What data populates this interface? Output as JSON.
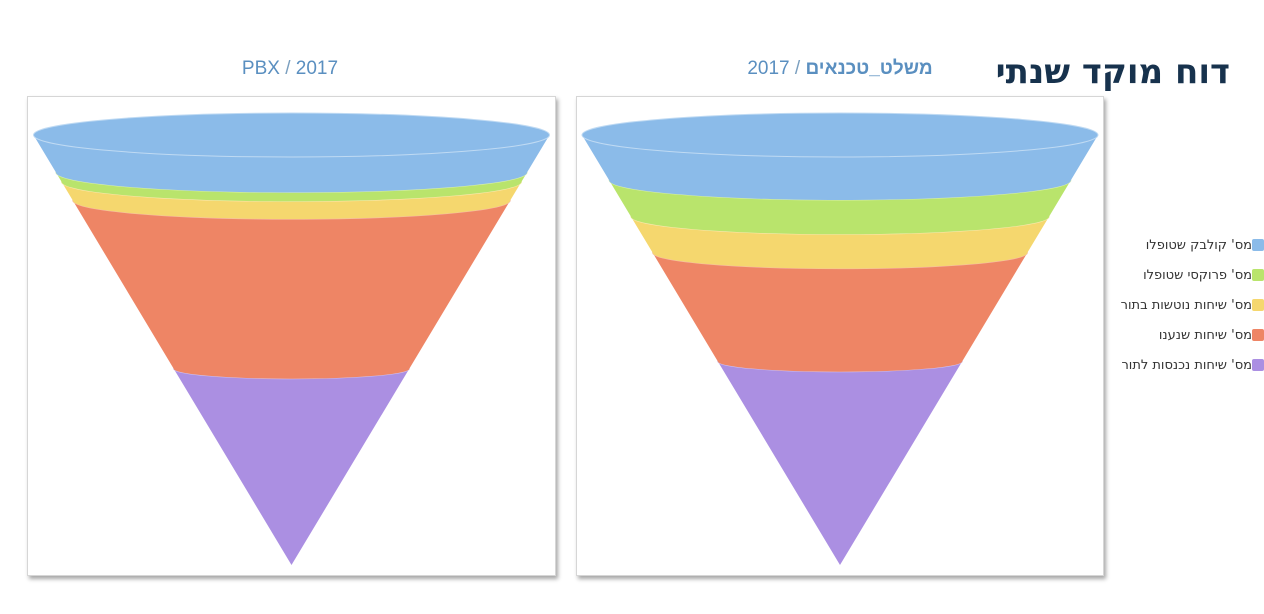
{
  "page": {
    "title": "דוח מוקד שנתי"
  },
  "charts": [
    {
      "name_part": "PBX",
      "separator": " / ",
      "year": "2017",
      "name_bold": false
    },
    {
      "name_part": "משלט_טכנאים",
      "separator": " / ",
      "year": "2017",
      "name_bold": true
    }
  ],
  "legend": {
    "items": [
      {
        "label": "מס' קולבק שטופלו",
        "color": "#8bbbe9"
      },
      {
        "label": "מס' פרוקסי שטופלו",
        "color": "#b9e46c"
      },
      {
        "label": "מס' שיחות נוטשות בתור",
        "color": "#f5d76e"
      },
      {
        "label": "מס' שיחות שנענו",
        "color": "#ee8565"
      },
      {
        "label": "מס' שיחות נכנסות לתור",
        "color": "#ab8fe2"
      }
    ]
  },
  "chart_data": [
    {
      "type": "funnel",
      "title": "PBX / 2017",
      "categories": [
        "מס' קולבק שטופלו",
        "מס' פרוקסי שטופלו",
        "מס' שיחות נוטשות בתור",
        "מס' שיחות שנענו",
        "מס' שיחות נכנסות לתור"
      ],
      "values": [
        8,
        2,
        4,
        36,
        42
      ],
      "colors": [
        "#8bbbe9",
        "#b9e46c",
        "#f5d76e",
        "#ee8565",
        "#ab8fe2"
      ]
    },
    {
      "type": "funnel",
      "title": "משלט_טכנאים / 2017",
      "categories": [
        "מס' קולבק שטופלו",
        "מס' פרוקסי שטופלו",
        "מס' שיחות נוטשות בתור",
        "מס' שיחות שנענו",
        "מס' שיחות נכנסות לתור"
      ],
      "values": [
        10,
        8,
        8,
        24,
        45
      ],
      "colors": [
        "#8bbbe9",
        "#b9e46c",
        "#f5d76e",
        "#ee8565",
        "#ab8fe2"
      ]
    }
  ]
}
